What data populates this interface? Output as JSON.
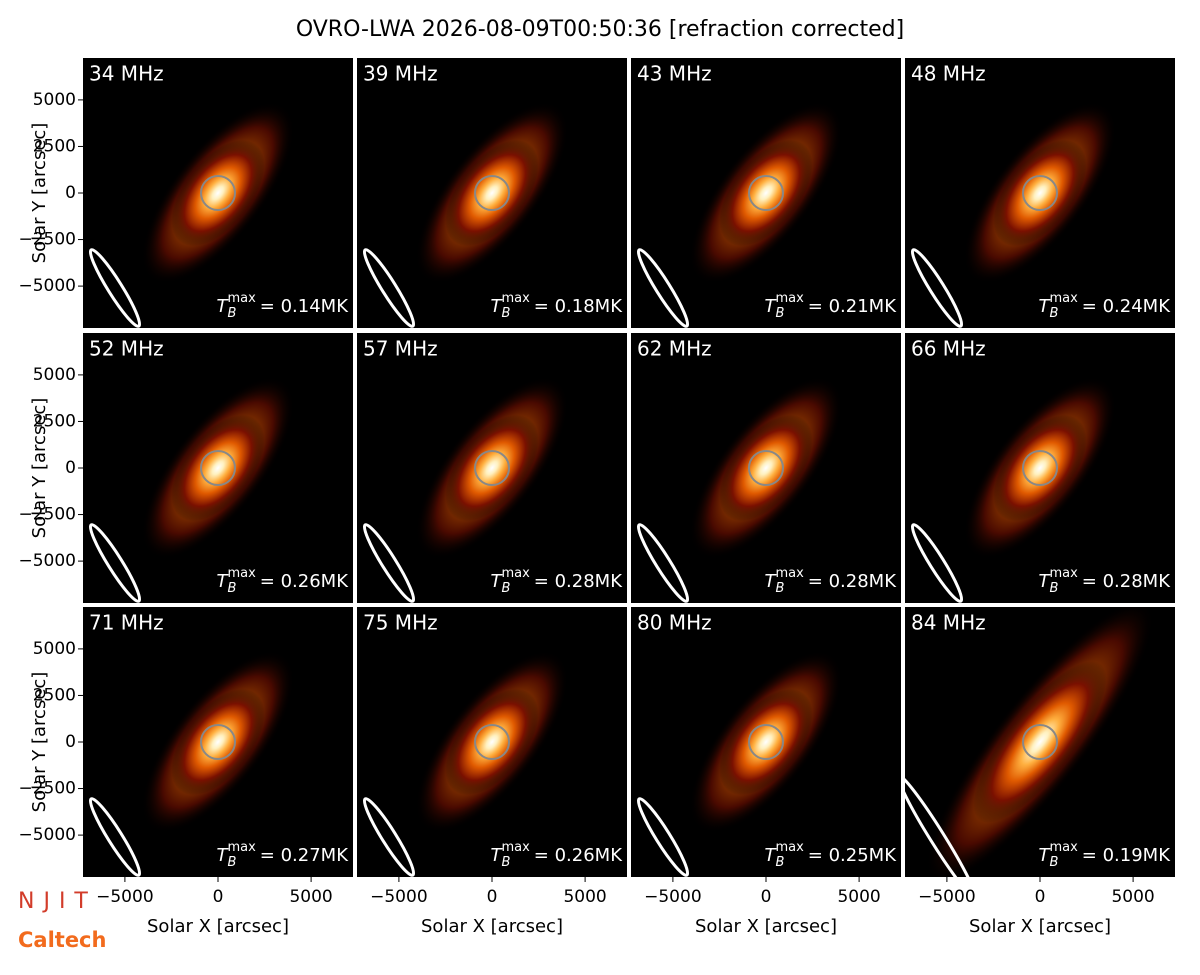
{
  "title": "OVRO-LWA 2026-08-09T00:50:36 [refraction corrected]",
  "logos": [
    "NJIT",
    "Caltech"
  ],
  "chart_data": [
    {
      "type": "image",
      "title": "34 MHz",
      "tb_max": {
        "symbol": "T",
        "sub": "B",
        "sup": "max",
        "text": "= 0.14MK"
      },
      "xlim": [
        -7250,
        7250
      ],
      "ylim": [
        -7250,
        7250
      ],
      "ylabel": "Solar Y [arcsec]",
      "yticks": [
        {
          "value": -5000,
          "label": "−5000"
        },
        {
          "value": -2500,
          "label": "−2500"
        },
        0,
        2500,
        5000
      ]
    },
    {
      "type": "image",
      "title": "39 MHz",
      "tb_max": {
        "symbol": "T",
        "sub": "B",
        "sup": "max",
        "text": "= 0.18MK"
      },
      "xlim": [
        -7250,
        7250
      ],
      "ylim": [
        -7250,
        7250
      ]
    },
    {
      "type": "image",
      "title": "43 MHz",
      "tb_max": {
        "symbol": "T",
        "sub": "B",
        "sup": "max",
        "text": "= 0.21MK"
      },
      "xlim": [
        -7250,
        7250
      ],
      "ylim": [
        -7250,
        7250
      ]
    },
    {
      "type": "image",
      "title": "48 MHz",
      "tb_max": {
        "symbol": "T",
        "sub": "B",
        "sup": "max",
        "text": "= 0.24MK"
      },
      "xlim": [
        -7250,
        7250
      ],
      "ylim": [
        -7250,
        7250
      ]
    },
    {
      "type": "image",
      "title": "52 MHz",
      "tb_max": {
        "symbol": "T",
        "sub": "B",
        "sup": "max",
        "text": "= 0.26MK"
      },
      "xlim": [
        -7250,
        7250
      ],
      "ylim": [
        -7250,
        7250
      ],
      "ylabel": "Solar Y [arcsec]",
      "yticks": [
        {
          "value": -5000,
          "label": "−5000"
        },
        {
          "value": -2500,
          "label": "−2500"
        },
        0,
        2500,
        5000
      ]
    },
    {
      "type": "image",
      "title": "57 MHz",
      "tb_max": {
        "symbol": "T",
        "sub": "B",
        "sup": "max",
        "text": "= 0.28MK"
      },
      "xlim": [
        -7250,
        7250
      ],
      "ylim": [
        -7250,
        7250
      ]
    },
    {
      "type": "image",
      "title": "62 MHz",
      "tb_max": {
        "symbol": "T",
        "sub": "B",
        "sup": "max",
        "text": "= 0.28MK"
      },
      "xlim": [
        -7250,
        7250
      ],
      "ylim": [
        -7250,
        7250
      ]
    },
    {
      "type": "image",
      "title": "66 MHz",
      "tb_max": {
        "symbol": "T",
        "sub": "B",
        "sup": "max",
        "text": "= 0.28MK"
      },
      "xlim": [
        -7250,
        7250
      ],
      "ylim": [
        -7250,
        7250
      ]
    },
    {
      "type": "image",
      "title": "71 MHz",
      "tb_max": {
        "symbol": "T",
        "sub": "B",
        "sup": "max",
        "text": "= 0.27MK"
      },
      "xlim": [
        -7250,
        7250
      ],
      "ylim": [
        -7250,
        7250
      ],
      "ylabel": "Solar Y [arcsec]",
      "yticks": [
        {
          "value": -5000,
          "label": "−5000"
        },
        {
          "value": -2500,
          "label": "−2500"
        },
        0,
        2500,
        5000
      ],
      "xlabel": "Solar X [arcsec]",
      "xticks": [
        {
          "value": -5000,
          "label": "−5000"
        },
        0,
        5000
      ]
    },
    {
      "type": "image",
      "title": "75 MHz",
      "tb_max": {
        "symbol": "T",
        "sub": "B",
        "sup": "max",
        "text": "= 0.26MK"
      },
      "xlim": [
        -7250,
        7250
      ],
      "ylim": [
        -7250,
        7250
      ],
      "xlabel": "Solar X [arcsec]",
      "xticks": [
        {
          "value": -5000,
          "label": "−5000"
        },
        0,
        5000
      ]
    },
    {
      "type": "image",
      "title": "80 MHz",
      "tb_max": {
        "symbol": "T",
        "sub": "B",
        "sup": "max",
        "text": "= 0.25MK"
      },
      "xlim": [
        -7250,
        7250
      ],
      "ylim": [
        -7250,
        7250
      ],
      "xlabel": "Solar X [arcsec]",
      "xticks": [
        {
          "value": -5000,
          "label": "−5000"
        },
        0,
        5000
      ]
    },
    {
      "type": "image",
      "title": "84 MHz",
      "tb_max": {
        "symbol": "T",
        "sub": "B",
        "sup": "max",
        "text": "= 0.19MK"
      },
      "xlim": [
        -7250,
        7250
      ],
      "ylim": [
        -7250,
        7250
      ],
      "xlabel": "Solar X [arcsec]",
      "xticks": [
        {
          "value": -5000,
          "label": "−5000"
        },
        0,
        5000
      ]
    }
  ]
}
